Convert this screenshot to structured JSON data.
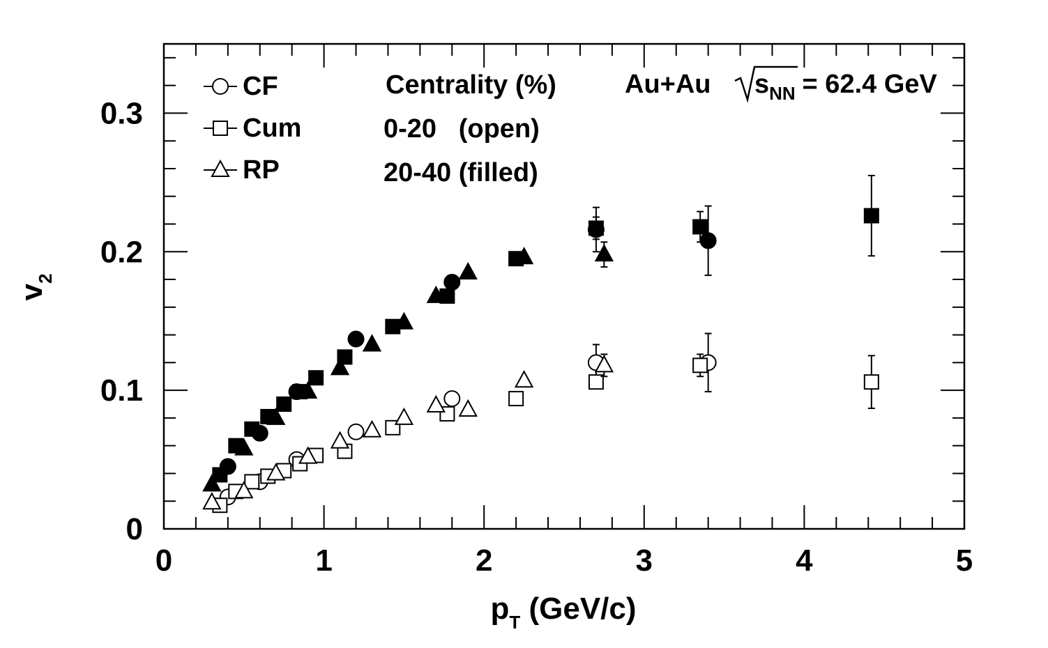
{
  "chart_data": {
    "type": "scatter",
    "xlabel_main": "p",
    "xlabel_sub": "T",
    "xlabel_rest": " (GeV/c)",
    "ylabel_main": "v",
    "ylabel_sub": "2",
    "xlim": [
      0,
      5
    ],
    "ylim": [
      0,
      0.35
    ],
    "x_ticks": [
      0,
      1,
      2,
      3,
      4,
      5
    ],
    "x_tick_labels": [
      "0",
      "1",
      "2",
      "3",
      "4",
      "5"
    ],
    "y_ticks": [
      0,
      0.1,
      0.2,
      0.3
    ],
    "y_tick_labels": [
      "0",
      "0.1",
      "0.2",
      "0.3"
    ],
    "grid": false,
    "legend": {
      "placement": "top-left",
      "entries": [
        {
          "marker": "circle",
          "label": "CF"
        },
        {
          "marker": "square",
          "label": "Cum"
        },
        {
          "marker": "triangle",
          "label": "RP"
        }
      ]
    },
    "annotations": {
      "centrality_title": "Centrality (%)",
      "open_label": "0-20   (open)",
      "filled_label": "20-40 (filled)",
      "system_prefix": "Au+Au",
      "system_sqrt_main": "s",
      "system_sqrt_sub": "NN",
      "system_suffix": " = 62.4 GeV"
    },
    "series": [
      {
        "marker": "circle",
        "fill": "open",
        "centrality": "0-20",
        "x": [
          0.4,
          0.6,
          0.83,
          1.2,
          1.8,
          2.7,
          3.4
        ],
        "y": [
          0.023,
          0.034,
          0.05,
          0.07,
          0.094,
          0.12,
          0.12
        ],
        "err": [
          0,
          0,
          0,
          0,
          0,
          0.013,
          0.021
        ]
      },
      {
        "marker": "square",
        "fill": "open",
        "centrality": "0-20",
        "x": [
          0.35,
          0.45,
          0.55,
          0.65,
          0.75,
          0.85,
          0.95,
          1.13,
          1.43,
          1.77,
          2.2,
          2.7,
          3.35,
          4.42
        ],
        "y": [
          0.017,
          0.027,
          0.034,
          0.038,
          0.042,
          0.047,
          0.053,
          0.056,
          0.073,
          0.083,
          0.094,
          0.106,
          0.118,
          0.106
        ],
        "err": [
          0,
          0,
          0,
          0,
          0,
          0,
          0,
          0,
          0,
          0,
          0,
          0.004,
          0.008,
          0.019
        ]
      },
      {
        "marker": "triangle",
        "fill": "open",
        "centrality": "0-20",
        "x": [
          0.3,
          0.5,
          0.7,
          0.9,
          1.1,
          1.3,
          1.5,
          1.7,
          1.9,
          2.25,
          2.75
        ],
        "y": [
          0.019,
          0.027,
          0.04,
          0.052,
          0.063,
          0.071,
          0.08,
          0.089,
          0.086,
          0.107,
          0.118
        ],
        "err": [
          0,
          0,
          0,
          0,
          0,
          0,
          0,
          0,
          0,
          0,
          0.008
        ]
      },
      {
        "marker": "circle",
        "fill": "filled",
        "centrality": "20-40",
        "x": [
          0.4,
          0.6,
          0.83,
          1.2,
          1.8,
          2.7,
          3.4
        ],
        "y": [
          0.045,
          0.069,
          0.099,
          0.137,
          0.178,
          0.216,
          0.208
        ],
        "err": [
          0,
          0,
          0,
          0,
          0,
          0.016,
          0.025
        ]
      },
      {
        "marker": "square",
        "fill": "filled",
        "centrality": "20-40",
        "x": [
          0.35,
          0.45,
          0.55,
          0.65,
          0.75,
          0.85,
          0.95,
          1.13,
          1.43,
          1.77,
          2.2,
          2.7,
          3.35,
          4.42
        ],
        "y": [
          0.039,
          0.06,
          0.072,
          0.081,
          0.09,
          0.099,
          0.109,
          0.124,
          0.146,
          0.168,
          0.195,
          0.217,
          0.218,
          0.226
        ],
        "err": [
          0,
          0,
          0,
          0,
          0,
          0,
          0,
          0,
          0,
          0,
          0,
          0.008,
          0.011,
          0.029
        ]
      },
      {
        "marker": "triangle",
        "fill": "filled",
        "centrality": "20-40",
        "x": [
          0.3,
          0.5,
          0.7,
          0.9,
          1.1,
          1.3,
          1.5,
          1.7,
          1.9,
          2.25,
          2.75
        ],
        "y": [
          0.032,
          0.058,
          0.08,
          0.099,
          0.116,
          0.133,
          0.149,
          0.168,
          0.185,
          0.196,
          0.198
        ],
        "err": [
          0,
          0,
          0,
          0,
          0,
          0,
          0,
          0,
          0,
          0,
          0.009
        ]
      }
    ]
  }
}
